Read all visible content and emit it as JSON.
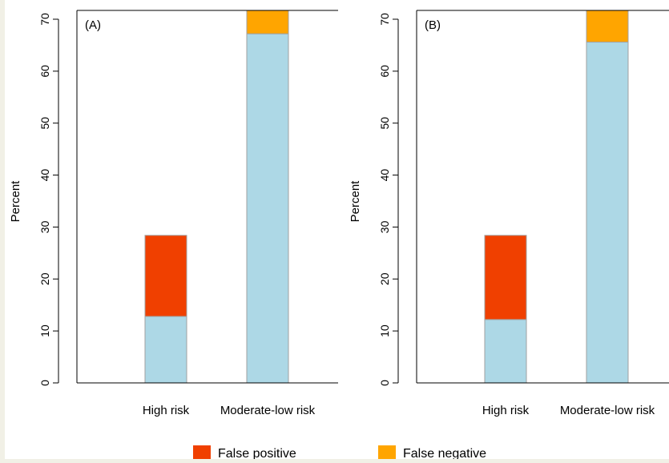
{
  "colors": {
    "true_segment": "#add8e6",
    "false_positive": "#f04000",
    "false_negative": "#ffa500",
    "axis": "#000000",
    "background": "#f1f0e6"
  },
  "legend": [
    {
      "label": "False positive",
      "color": "#f04000"
    },
    {
      "label": "False negative",
      "color": "#ffa500"
    }
  ],
  "chart_data": [
    {
      "type": "bar",
      "stacked": true,
      "panel_label": "(A)",
      "ylabel": "Percent",
      "ylim": [
        0,
        70
      ],
      "yticks": [
        0,
        10,
        20,
        30,
        40,
        50,
        60,
        70
      ],
      "categories": [
        "High risk",
        "Moderate-low risk"
      ],
      "series": [
        {
          "name": "",
          "color": "#add8e6",
          "values": [
            12.8,
            67.2
          ]
        },
        {
          "name": "False positive",
          "color": "#f04000",
          "values": [
            15.6,
            0
          ]
        },
        {
          "name": "False negative",
          "color": "#ffa500",
          "values": [
            0,
            4.6
          ]
        }
      ]
    },
    {
      "type": "bar",
      "stacked": true,
      "panel_label": "(B)",
      "ylabel": "Percent",
      "ylim": [
        0,
        70
      ],
      "yticks": [
        0,
        10,
        20,
        30,
        40,
        50,
        60,
        70
      ],
      "categories": [
        "High risk",
        "Moderate-low risk"
      ],
      "series": [
        {
          "name": "",
          "color": "#add8e6",
          "values": [
            12.2,
            65.6
          ]
        },
        {
          "name": "False positive",
          "color": "#f04000",
          "values": [
            16.2,
            0
          ]
        },
        {
          "name": "False negative",
          "color": "#ffa500",
          "values": [
            0,
            6.2
          ]
        }
      ]
    }
  ]
}
